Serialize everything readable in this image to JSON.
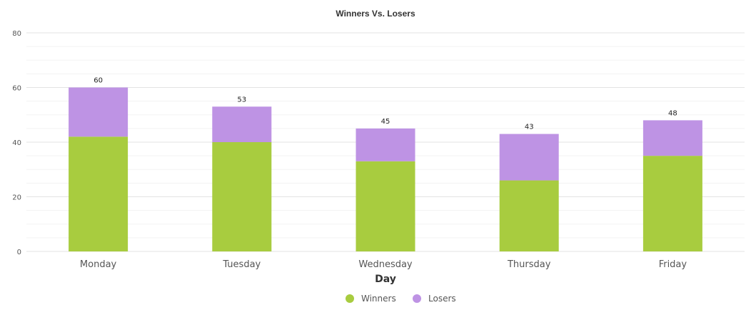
{
  "chart_data": {
    "type": "bar",
    "stacked": true,
    "title": "Winners Vs. Losers",
    "xlabel": "Day",
    "ylabel": "",
    "ylim": [
      0,
      80
    ],
    "yticks": [
      0,
      20,
      40,
      60,
      80
    ],
    "grid": true,
    "legend_position": "bottom-center",
    "categories": [
      "Monday",
      "Tuesday",
      "Wednesday",
      "Thursday",
      "Friday"
    ],
    "series": [
      {
        "name": "Winners",
        "color": "#a8cc3f",
        "values": [
          42,
          40,
          33,
          26,
          35
        ]
      },
      {
        "name": "Losers",
        "color": "#be93e4",
        "values": [
          18,
          13,
          12,
          17,
          13
        ]
      }
    ],
    "totals": [
      60,
      53,
      45,
      43,
      48
    ]
  }
}
